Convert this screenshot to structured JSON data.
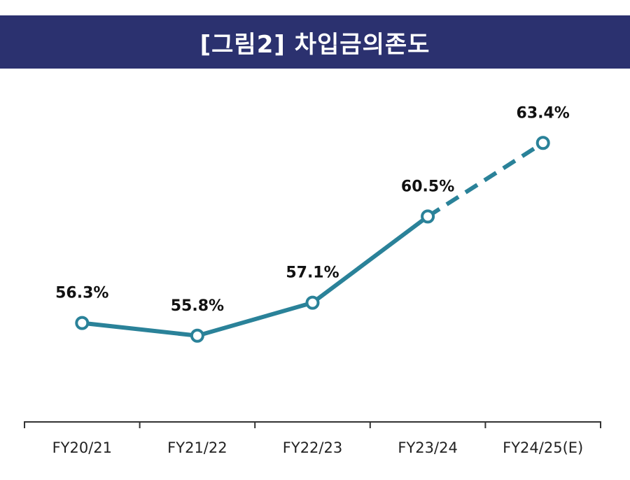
{
  "title": "[그림2] 차입금의존도",
  "chart_data": {
    "type": "line",
    "title": "[그림2] 차입금의존도",
    "categories": [
      "FY20/21",
      "FY21/22",
      "FY22/23",
      "FY23/24",
      "FY24/25(E)"
    ],
    "values": [
      56.3,
      55.8,
      57.1,
      60.5,
      63.4
    ],
    "data_labels": [
      "56.3%",
      "55.8%",
      "57.1%",
      "60.5%",
      "63.4%"
    ],
    "estimated_from_index": 3,
    "xlabel": "",
    "ylabel": "",
    "unit": "%",
    "ylim": [
      50.0,
      66.0
    ],
    "grid": false,
    "line_color": "#2a8299"
  }
}
